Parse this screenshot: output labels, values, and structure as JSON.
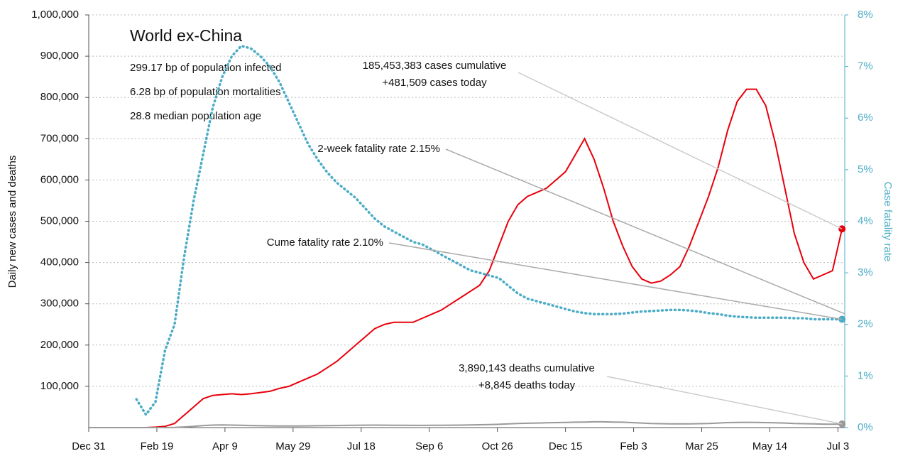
{
  "chart_data": {
    "type": "line",
    "info": {
      "title": "World ex-China",
      "lines": [
        "299.17 bp of population infected",
        "6.28 bp of population mortalities",
        "28.8 median population age"
      ]
    },
    "ylabel": "Daily new cases and deaths",
    "y2label": "Case fatality rate",
    "x": [
      0,
      7,
      14,
      21,
      28,
      35,
      42,
      49,
      56,
      63,
      70,
      77,
      84,
      91,
      98,
      105,
      112,
      119,
      126,
      133,
      140,
      147,
      154,
      161,
      168,
      175,
      182,
      189,
      196,
      203,
      210,
      217,
      224,
      231,
      238,
      245,
      252,
      259,
      266,
      273,
      280,
      287,
      294,
      301,
      308,
      315,
      322,
      329,
      336,
      343,
      350,
      357,
      364,
      371,
      378,
      385,
      392,
      399,
      406,
      413,
      420,
      427,
      434,
      441,
      448,
      455,
      462,
      469,
      476,
      483,
      490,
      497,
      504,
      511,
      518,
      525,
      532,
      539,
      546,
      553
    ],
    "series": [
      {
        "color": "#e8000b",
        "dash": "solid",
        "values": [
          0,
          0,
          0,
          0,
          0,
          0,
          0,
          1000,
          3000,
          10000,
          30000,
          50000,
          70000,
          78000,
          80000,
          82000,
          80000,
          82000,
          85000,
          88000,
          95000,
          100000,
          110000,
          120000,
          130000,
          145000,
          160000,
          180000,
          200000,
          220000,
          240000,
          250000,
          255000,
          255000,
          255000,
          265000,
          275000,
          285000,
          300000,
          315000,
          330000,
          345000,
          380000,
          440000,
          500000,
          540000,
          560000,
          570000,
          580000,
          600000,
          620000,
          660000,
          700000,
          650000,
          580000,
          500000,
          440000,
          390000,
          360000,
          350000,
          355000,
          370000,
          390000,
          440000,
          500000,
          560000,
          630000,
          720000,
          790000,
          820000,
          820000,
          780000,
          690000,
          580000,
          470000,
          400000,
          360000,
          370000,
          380000,
          481509
        ]
      },
      {
        "color": "#999999",
        "dash": "solid",
        "values": [
          0,
          0,
          0,
          0,
          0,
          0,
          0,
          0,
          0,
          500,
          1500,
          3000,
          5000,
          6000,
          6500,
          6000,
          5500,
          5000,
          4500,
          4200,
          4000,
          4000,
          4000,
          4200,
          4500,
          4800,
          5000,
          5300,
          5600,
          5800,
          6000,
          5800,
          5600,
          5500,
          5400,
          5400,
          5500,
          5600,
          5800,
          6000,
          6400,
          6800,
          7200,
          8000,
          9000,
          10000,
          10500,
          11000,
          11500,
          12000,
          12500,
          13000,
          13500,
          14000,
          14000,
          13500,
          13000,
          12000,
          11000,
          10000,
          9500,
          9000,
          9000,
          9200,
          9500,
          10000,
          11000,
          12000,
          12500,
          12800,
          12500,
          12000,
          11500,
          11000,
          10000,
          9500,
          9000,
          8500,
          8300,
          8845
        ]
      },
      {
        "color": "#4bacc6",
        "dash": "dotted",
        "axis": "y2",
        "values": [
          null,
          null,
          null,
          null,
          null,
          0.55,
          0.25,
          0.5,
          1.5,
          2.0,
          3.3,
          4.4,
          5.3,
          6.2,
          6.8,
          7.2,
          7.4,
          7.35,
          7.2,
          7.0,
          6.7,
          6.3,
          5.9,
          5.5,
          5.2,
          4.95,
          4.75,
          4.6,
          4.45,
          4.25,
          4.05,
          3.9,
          3.8,
          3.7,
          3.6,
          3.55,
          3.45,
          3.35,
          3.25,
          3.15,
          3.05,
          3.0,
          2.95,
          2.9,
          2.75,
          2.6,
          2.5,
          2.45,
          2.4,
          2.35,
          2.3,
          2.25,
          2.22,
          2.2,
          2.2,
          2.2,
          2.21,
          2.23,
          2.25,
          2.26,
          2.27,
          2.28,
          2.28,
          2.27,
          2.25,
          2.22,
          2.2,
          2.17,
          2.15,
          2.14,
          2.13,
          2.13,
          2.13,
          2.13,
          2.12,
          2.12,
          2.1,
          2.1,
          2.1,
          2.1
        ]
      }
    ],
    "annotations": [
      {
        "lines": [
          "185,453,383 cases cumulative",
          "+481,509 cases today"
        ]
      },
      {
        "lines": [
          "2-week fatality rate 2.15%"
        ]
      },
      {
        "lines": [
          "Cume fatality rate 2.10%"
        ]
      },
      {
        "lines": [
          "3,890,143 deaths cumulative",
          "+8,845 deaths today"
        ]
      }
    ],
    "xlim": [
      0,
      555
    ],
    "xticks": [
      {
        "value": 0,
        "label": "Dec 31"
      },
      {
        "value": 50,
        "label": "Feb 19"
      },
      {
        "value": 100,
        "label": "Apr 9"
      },
      {
        "value": 150,
        "label": "May 29"
      },
      {
        "value": 200,
        "label": "Jul 18"
      },
      {
        "value": 250,
        "label": "Sep 6"
      },
      {
        "value": 300,
        "label": "Oct 26"
      },
      {
        "value": 350,
        "label": "Dec 15"
      },
      {
        "value": 400,
        "label": "Feb 3"
      },
      {
        "value": 450,
        "label": "Mar 25"
      },
      {
        "value": 500,
        "label": "May 14"
      },
      {
        "value": 550,
        "label": "Jul 3"
      }
    ],
    "ylim": [
      0,
      1000000
    ],
    "yticks": [
      {
        "value": 100000,
        "label": "100,000"
      },
      {
        "value": 200000,
        "label": "200,000"
      },
      {
        "value": 300000,
        "label": "300,000"
      },
      {
        "value": 400000,
        "label": "400,000"
      },
      {
        "value": 500000,
        "label": "500,000"
      },
      {
        "value": 600000,
        "label": "600,000"
      },
      {
        "value": 700000,
        "label": "700,000"
      },
      {
        "value": 800000,
        "label": "800,000"
      },
      {
        "value": 900000,
        "label": "900,000"
      },
      {
        "value": 1000000,
        "label": "1,000,000"
      }
    ],
    "y2lim": [
      0,
      8
    ],
    "y2ticks": [
      {
        "value": 0,
        "label": "0%"
      },
      {
        "value": 1,
        "label": "1%"
      },
      {
        "value": 2,
        "label": "2%"
      },
      {
        "value": 3,
        "label": "3%"
      },
      {
        "value": 4,
        "label": "4%"
      },
      {
        "value": 5,
        "label": "5%"
      },
      {
        "value": 6,
        "label": "6%"
      },
      {
        "value": 7,
        "label": "7%"
      },
      {
        "value": 8,
        "label": "8%"
      }
    ],
    "grid": true
  }
}
